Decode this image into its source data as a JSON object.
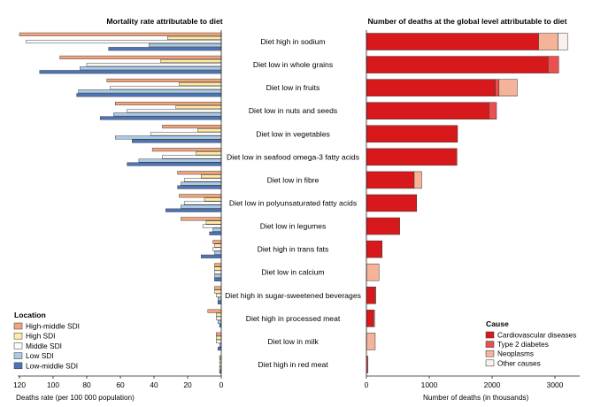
{
  "chart_data": [
    {
      "type": "bar",
      "orientation": "horizontal",
      "direction": "right-to-left",
      "title": "Mortality rate attributable to diet",
      "xlabel": "Deaths rate (per 100 000 population)",
      "xlim": [
        0,
        125
      ],
      "xticks": [
        "120",
        "100",
        "80",
        "60",
        "40",
        "20",
        "0"
      ],
      "grid": false,
      "legend_title": "Location",
      "legend_placement": "bottom-left",
      "categories": [
        "Diet high in sodium",
        "Diet low in whole grains",
        "Diet low in fruits",
        "Diet low in nuts and seeds",
        "Diet low in vegetables",
        "Diet low in seafood omega-3 fatty acids",
        "Diet low in fibre",
        "Diet low in polyunsaturated fatty acids",
        "Diet low in legumes",
        "Diet high in trans fats",
        "Diet low in calcium",
        "Diet high in sugar-sweetened beverages",
        "Diet high in processed meat",
        "Diet low in milk",
        "Diet high in red meat"
      ],
      "series": [
        {
          "name": "High-middle SDI",
          "color": "#f2a57c",
          "values": [
            120,
            96,
            68,
            63,
            35,
            41,
            26,
            25,
            24,
            5,
            4,
            4,
            8,
            3,
            1
          ]
        },
        {
          "name": "High SDI",
          "color": "#ffe9a6",
          "values": [
            32,
            36,
            25,
            27,
            14,
            15,
            12,
            10,
            9,
            4,
            4,
            4,
            3,
            3,
            1
          ]
        },
        {
          "name": "Middle SDI",
          "color": "#fafafa",
          "values": [
            116,
            80,
            66,
            56,
            42,
            35,
            22,
            22,
            11,
            5,
            4,
            3,
            3,
            3,
            1
          ]
        },
        {
          "name": "Low SDI",
          "color": "#a9cbe8",
          "values": [
            43,
            84,
            85,
            64,
            63,
            49,
            24,
            24,
            5,
            4,
            4,
            2,
            2,
            1,
            1
          ]
        },
        {
          "name": "Low-middle SDI",
          "color": "#4d74b8",
          "values": [
            67,
            108,
            86,
            72,
            53,
            56,
            26,
            33,
            7,
            12,
            4,
            2,
            1,
            2,
            1
          ]
        }
      ]
    },
    {
      "type": "bar",
      "orientation": "horizontal",
      "stacked": true,
      "title": "Number of deaths at the global level attributable to diet",
      "xlabel": "Number of deaths (in thousands)",
      "xlim": [
        0,
        3300
      ],
      "xticks": [
        "0",
        "1000",
        "2000",
        "3000"
      ],
      "grid": false,
      "legend_title": "Cause",
      "legend_placement": "bottom-right",
      "categories": [
        "Diet high in sodium",
        "Diet low in whole grains",
        "Diet low in fruits",
        "Diet low in nuts and seeds",
        "Diet low in vegetables",
        "Diet low in seafood omega-3 fatty acids",
        "Diet low in fibre",
        "Diet low in polyunsaturated fatty acids",
        "Diet low in legumes",
        "Diet high in trans fats",
        "Diet low in calcium",
        "Diet high in sugar-sweetened beverages",
        "Diet high in processed meat",
        "Diet low in milk",
        "Diet high in red meat"
      ],
      "series": [
        {
          "name": "Cardiovascular diseases",
          "color": "#d7191c",
          "values": [
            2740,
            2890,
            2050,
            1950,
            1450,
            1440,
            760,
            800,
            530,
            250,
            0,
            130,
            110,
            0,
            0
          ]
        },
        {
          "name": "Type 2 diabetes",
          "color": "#ea5050",
          "values": [
            0,
            170,
            60,
            120,
            0,
            0,
            0,
            0,
            0,
            0,
            0,
            20,
            20,
            0,
            25
          ]
        },
        {
          "name": "Neoplasms",
          "color": "#f5b39a",
          "values": [
            310,
            0,
            290,
            0,
            0,
            0,
            120,
            0,
            0,
            0,
            200,
            0,
            0,
            140,
            0
          ]
        },
        {
          "name": "Other causes",
          "color": "#fbf1ec",
          "values": [
            150,
            0,
            0,
            0,
            0,
            0,
            0,
            0,
            0,
            0,
            0,
            0,
            0,
            0,
            0
          ]
        }
      ]
    }
  ]
}
